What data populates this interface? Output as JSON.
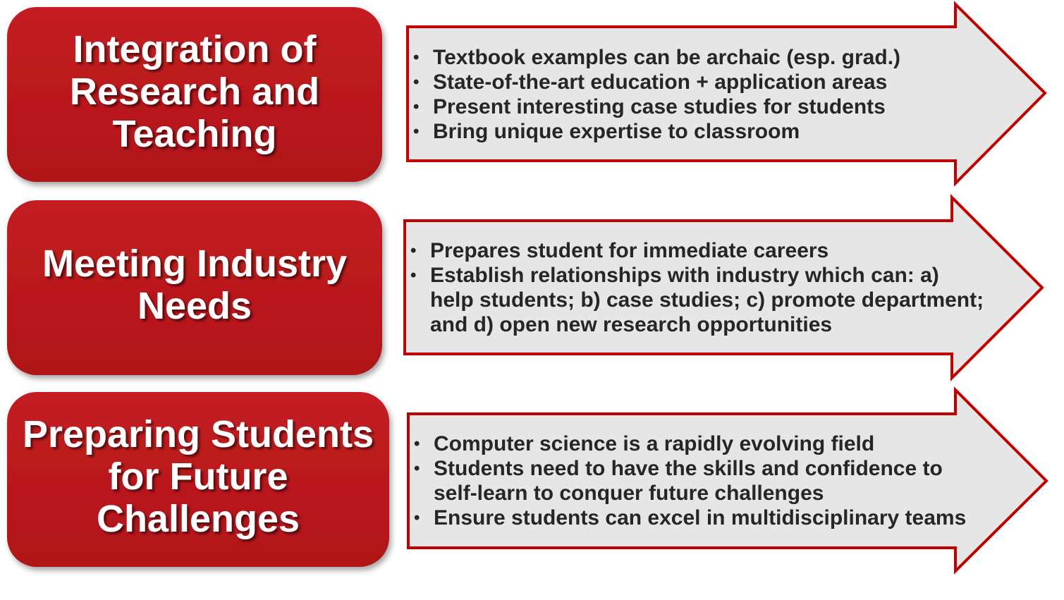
{
  "rows": [
    {
      "title": "Integration of Research and Teaching",
      "bullets": [
        "Textbook examples can be archaic (esp. grad.)",
        "State-of-the-art education + application areas",
        "Present interesting case studies for students",
        "Bring unique expertise to classroom"
      ]
    },
    {
      "title": "Meeting Industry Needs",
      "bullets": [
        "Prepares student for immediate careers",
        "Establish relationships with industry which can: a) help students; b) case studies;  c) promote department; and d) open new research opportunities"
      ]
    },
    {
      "title": "Preparing Students for Future Challenges",
      "bullets": [
        "Computer science is a rapidly evolving field",
        "Students need to have the skills and confidence to self-learn to conquer future challenges",
        "Ensure students can excel in multidisciplinary teams"
      ]
    }
  ]
}
